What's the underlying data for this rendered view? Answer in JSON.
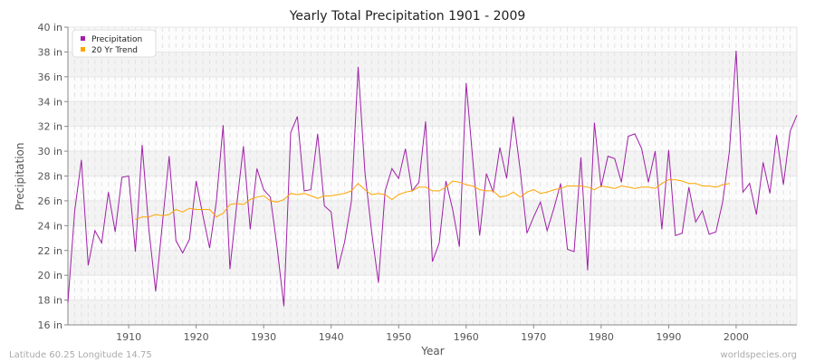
{
  "chart_data": {
    "type": "line",
    "title": "Yearly Total Precipitation 1901 - 2009",
    "xlabel": "Year",
    "ylabel": "Precipitation",
    "xlim": [
      1901,
      2009
    ],
    "ylim": [
      16,
      40
    ],
    "y_unit": "in",
    "x_ticks": [
      1910,
      1920,
      1930,
      1940,
      1950,
      1960,
      1970,
      1980,
      1990,
      2000
    ],
    "y_ticks": [
      16,
      18,
      20,
      22,
      24,
      26,
      28,
      30,
      32,
      34,
      36,
      38,
      40
    ],
    "y_tick_labels": [
      "16 in",
      "18 in",
      "20 in",
      "22 in",
      "24 in",
      "26 in",
      "28 in",
      "30 in",
      "32 in",
      "34 in",
      "36 in",
      "38 in",
      "40 in"
    ],
    "grid": true,
    "legend_placement": "top-left",
    "series": [
      {
        "name": "Precipitation",
        "color": "#a020a8",
        "x_start": 1901,
        "values": [
          17.8,
          25.2,
          29.3,
          20.8,
          23.6,
          22.6,
          26.7,
          23.5,
          27.9,
          28.0,
          21.9,
          30.5,
          23.7,
          18.7,
          24.2,
          29.6,
          22.8,
          21.8,
          22.9,
          27.6,
          24.8,
          22.2,
          26.0,
          32.1,
          20.5,
          25.6,
          30.4,
          23.7,
          28.6,
          26.9,
          26.3,
          22.2,
          17.5,
          31.5,
          32.8,
          26.8,
          26.9,
          31.4,
          25.6,
          25.1,
          20.5,
          22.7,
          26.0,
          36.8,
          28.3,
          23.5,
          19.4,
          26.8,
          28.6,
          27.8,
          30.2,
          26.8,
          27.5,
          32.4,
          21.1,
          22.6,
          27.6,
          25.3,
          22.3,
          35.5,
          29.2,
          23.2,
          28.2,
          26.7,
          30.3,
          27.8,
          32.8,
          28.5,
          23.4,
          24.7,
          25.9,
          23.6,
          25.4,
          27.4,
          22.1,
          21.9,
          29.5,
          20.4,
          32.3,
          27.1,
          29.6,
          29.4,
          27.5,
          31.2,
          31.4,
          30.2,
          27.5,
          30.0,
          23.7,
          30.1,
          23.2,
          23.4,
          27.1,
          24.3,
          25.2,
          23.3,
          23.5,
          25.9,
          30.0,
          38.1,
          26.7,
          27.4,
          24.9,
          29.1,
          26.6,
          31.3,
          27.3,
          31.6,
          32.9
        ]
      },
      {
        "name": "20 Yr Trend",
        "color": "#ffa500",
        "x_start": 1911,
        "values": [
          24.5,
          24.7,
          24.7,
          24.9,
          24.8,
          24.9,
          25.3,
          25.1,
          25.4,
          25.3,
          25.3,
          25.3,
          24.7,
          25.0,
          25.7,
          25.8,
          25.7,
          26.1,
          26.3,
          26.4,
          26.0,
          25.9,
          26.1,
          26.6,
          26.5,
          26.6,
          26.4,
          26.2,
          26.4,
          26.4,
          26.5,
          26.6,
          26.8,
          27.4,
          26.9,
          26.5,
          26.6,
          26.5,
          26.1,
          26.5,
          26.7,
          26.8,
          27.1,
          27.1,
          26.8,
          26.8,
          27.1,
          27.6,
          27.5,
          27.3,
          27.2,
          26.9,
          26.8,
          26.8,
          26.3,
          26.4,
          26.7,
          26.3,
          26.7,
          26.9,
          26.6,
          26.7,
          26.9,
          27.0,
          27.2,
          27.2,
          27.2,
          27.1,
          26.9,
          27.2,
          27.1,
          27.0,
          27.2,
          27.1,
          27.0,
          27.1,
          27.1,
          27.0,
          27.4,
          27.7,
          27.7,
          27.6,
          27.4,
          27.4,
          27.2,
          27.2,
          27.1,
          27.3,
          27.4
        ]
      }
    ]
  },
  "footer": {
    "location": "Latitude 60.25 Longitude 14.75",
    "source": "worldspecies.org"
  }
}
